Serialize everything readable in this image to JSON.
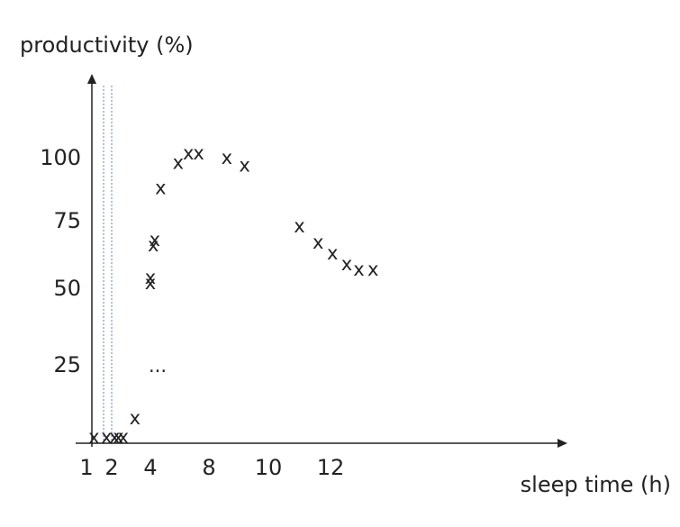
{
  "chart_data": {
    "type": "scatter",
    "ylabel": "productivity (%)",
    "xlabel": "sleep time (h)",
    "x_ticks": [
      "1",
      "2",
      "4",
      "8",
      "10",
      "12"
    ],
    "y_ticks": [
      "25",
      "50",
      "75",
      "100"
    ],
    "marker": "x",
    "ellipsis": "...",
    "points": [
      {
        "x": 1.3,
        "y": 2
      },
      {
        "x": 1.8,
        "y": 2
      },
      {
        "x": 2.15,
        "y": 2
      },
      {
        "x": 2.35,
        "y": 2
      },
      {
        "x": 2.6,
        "y": 2
      },
      {
        "x": 3.2,
        "y": 8
      },
      {
        "x": 4.0,
        "y": 52
      },
      {
        "x": 4.0,
        "y": 54
      },
      {
        "x": 4.2,
        "y": 66
      },
      {
        "x": 4.3,
        "y": 68
      },
      {
        "x": 4.7,
        "y": 88
      },
      {
        "x": 5.9,
        "y": 98
      },
      {
        "x": 6.6,
        "y": 102
      },
      {
        "x": 7.3,
        "y": 102
      },
      {
        "x": 8.6,
        "y": 100
      },
      {
        "x": 9.2,
        "y": 97
      },
      {
        "x": 11.0,
        "y": 73
      },
      {
        "x": 11.6,
        "y": 67
      },
      {
        "x": 12.1,
        "y": 63
      },
      {
        "x": 12.8,
        "y": 59
      },
      {
        "x": 13.4,
        "y": 57
      },
      {
        "x": 14.1,
        "y": 57
      }
    ],
    "axis_color": "#222222",
    "guide_line_color": "#6b7fc4"
  }
}
